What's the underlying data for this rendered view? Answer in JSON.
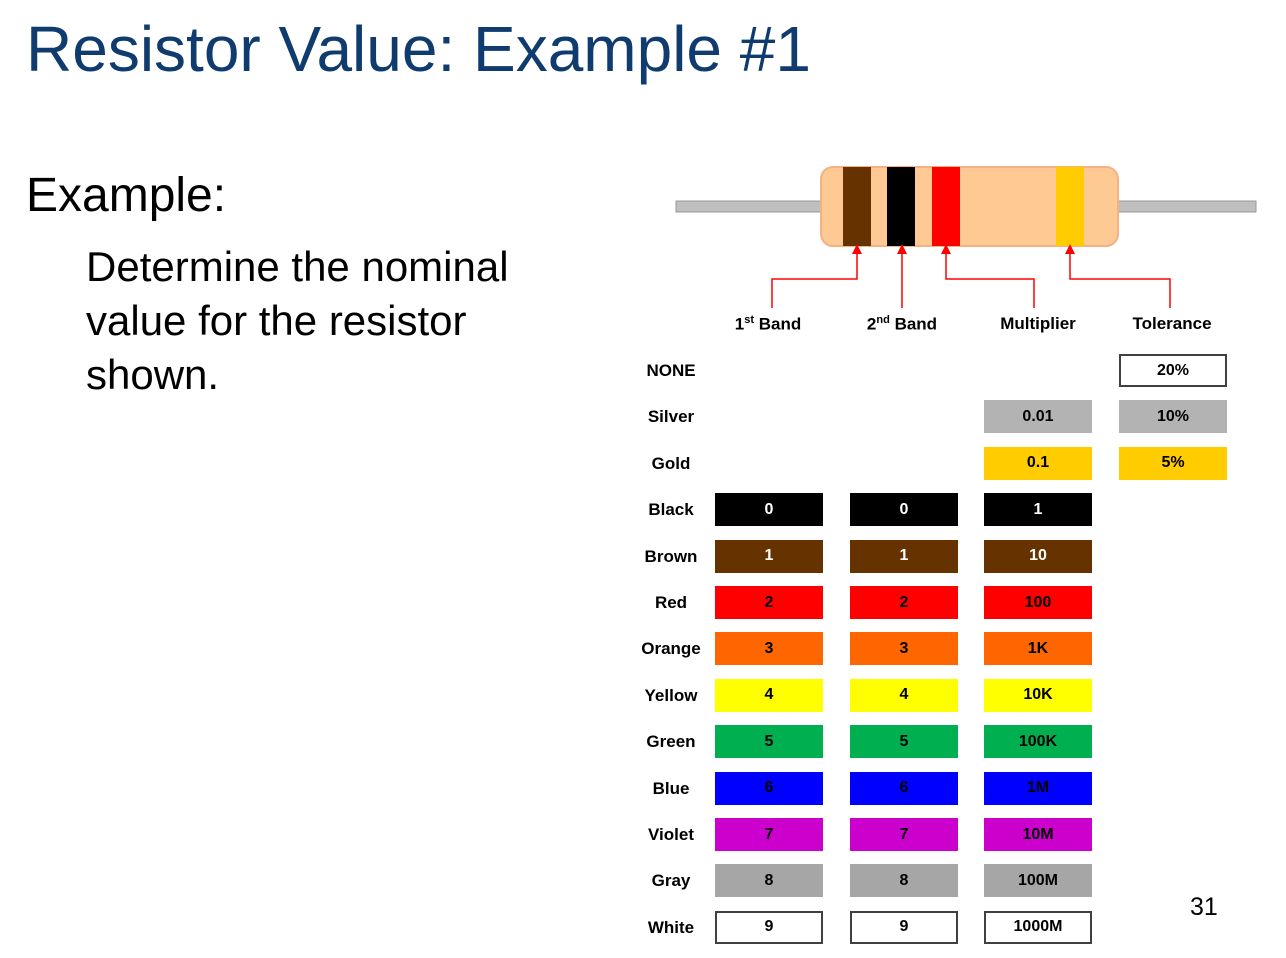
{
  "slide": {
    "title": "Resistor Value: Example #1",
    "example_label": "Example:",
    "body": "Determine the nominal value for the resistor shown.",
    "page_number": "31"
  },
  "resistor": {
    "body_color": "#fec993",
    "lead_color": "#bfbfbf",
    "bands": [
      {
        "role": "1st Band",
        "color_name": "Brown",
        "color": "#663300"
      },
      {
        "role": "2nd Band",
        "color_name": "Black",
        "color": "#000000"
      },
      {
        "role": "Multiplier",
        "color_name": "Red",
        "color": "#ff0000"
      },
      {
        "role": "Tolerance",
        "color_name": "Gold",
        "color": "#ffcc00"
      }
    ],
    "arrow_color": "#ff0000"
  },
  "table": {
    "headers": {
      "band1": {
        "base": "1",
        "sup": "st",
        "rest": " Band"
      },
      "band2": {
        "base": "2",
        "sup": "nd",
        "rest": " Band"
      },
      "multiplier": "Multiplier",
      "tolerance": "Tolerance"
    },
    "rows": [
      {
        "name": "NONE",
        "color": "#ffffff",
        "text_color": "#000000",
        "band1": null,
        "band2": null,
        "multiplier": null,
        "tolerance": "20%"
      },
      {
        "name": "Silver",
        "color": "#b3b3b3",
        "text_color": "#000000",
        "band1": null,
        "band2": null,
        "multiplier": "0.01",
        "tolerance": "10%"
      },
      {
        "name": "Gold",
        "color": "#ffcc00",
        "text_color": "#000000",
        "band1": null,
        "band2": null,
        "multiplier": "0.1",
        "tolerance": "5%"
      },
      {
        "name": "Black",
        "color": "#000000",
        "text_color": "#ffffff",
        "band1": "0",
        "band2": "0",
        "multiplier": "1",
        "tolerance": null
      },
      {
        "name": "Brown",
        "color": "#663300",
        "text_color": "#ffffff",
        "band1": "1",
        "band2": "1",
        "multiplier": "10",
        "tolerance": null
      },
      {
        "name": "Red",
        "color": "#ff0000",
        "text_color": "#000000",
        "band1": "2",
        "band2": "2",
        "multiplier": "100",
        "tolerance": null
      },
      {
        "name": "Orange",
        "color": "#ff6600",
        "text_color": "#000000",
        "band1": "3",
        "band2": "3",
        "multiplier": "1K",
        "tolerance": null
      },
      {
        "name": "Yellow",
        "color": "#ffff00",
        "text_color": "#000000",
        "band1": "4",
        "band2": "4",
        "multiplier": "10K",
        "tolerance": null
      },
      {
        "name": "Green",
        "color": "#00b050",
        "text_color": "#000000",
        "band1": "5",
        "band2": "5",
        "multiplier": "100K",
        "tolerance": null
      },
      {
        "name": "Blue",
        "color": "#0000ff",
        "text_color": "#000000",
        "band1": "6",
        "band2": "6",
        "multiplier": "1M",
        "tolerance": null
      },
      {
        "name": "Violet",
        "color": "#cc00cc",
        "text_color": "#000000",
        "band1": "7",
        "band2": "7",
        "multiplier": "10M",
        "tolerance": null
      },
      {
        "name": "Gray",
        "color": "#a6a6a6",
        "text_color": "#000000",
        "band1": "8",
        "band2": "8",
        "multiplier": "100M",
        "tolerance": null
      },
      {
        "name": "White",
        "color": "#ffffff",
        "text_color": "#000000",
        "band1": "9",
        "band2": "9",
        "multiplier": "1000M",
        "tolerance": null
      }
    ]
  }
}
